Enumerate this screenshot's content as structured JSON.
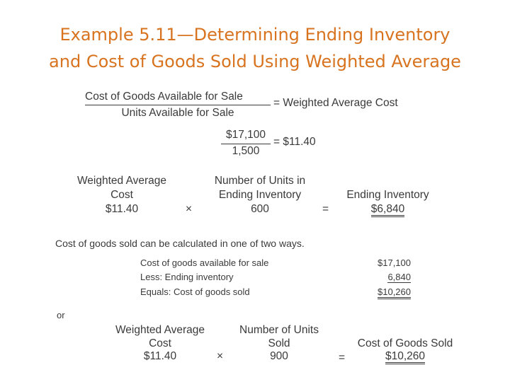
{
  "title": {
    "line1": "Example 5.11—Determining Ending Inventory",
    "line2": "and Cost of Goods Sold Using Weighted Average"
  },
  "formula": {
    "numerator": "Cost of Goods Available for Sale",
    "denominator": "Units Available for Sale",
    "result": "= Weighted Average Cost"
  },
  "calc": {
    "numerator": "$17,100",
    "denominator": "1,500",
    "result": "= $11.40"
  },
  "ending_inventory": {
    "col1_line1": "Weighted Average",
    "col1_line2": "Cost",
    "col1_value": "$11.40",
    "times": "×",
    "col2_line1": "Number of Units in",
    "col2_line2": "Ending Inventory",
    "col2_value": "600",
    "equals": "=",
    "col3_line1": "Ending Inventory",
    "col3_value": "$6,840"
  },
  "intro": "Cost of goods sold can be calculated in one of two ways.",
  "schedule": [
    {
      "label": "Cost of goods available for sale",
      "value": "$17,100"
    },
    {
      "label": "Less: Ending inventory",
      "value": "6,840"
    },
    {
      "label": "Equals: Cost of goods sold",
      "value": "$10,260"
    }
  ],
  "or": "or",
  "cogs": {
    "col1_line1": "Weighted Average",
    "col1_line2": "Cost",
    "col1_value": "$11.40",
    "times": "×",
    "col2_line1": "Number of Units",
    "col2_line2": "Sold",
    "col2_value": "900",
    "equals": "=",
    "col3_line1": "Cost of Goods Sold",
    "col3_value": "$10,260"
  }
}
